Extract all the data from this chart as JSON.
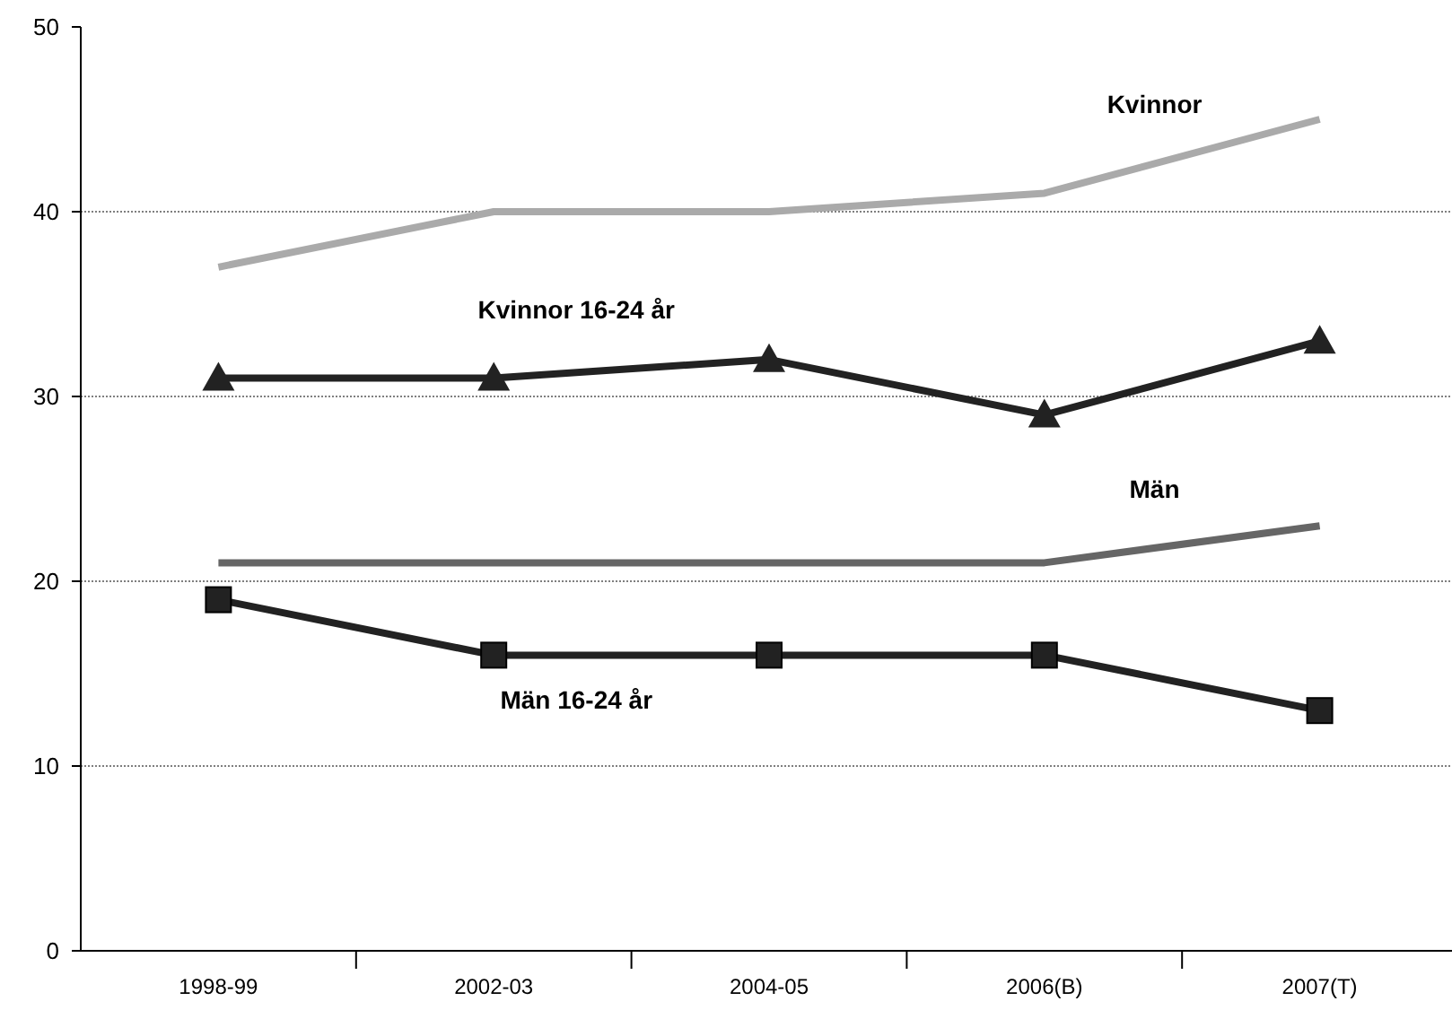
{
  "chart_data": {
    "type": "line",
    "categories": [
      "1998-99",
      "2002-03",
      "2004-05",
      "2006(B)",
      "2007(T)"
    ],
    "ylim": [
      0,
      50
    ],
    "yticks": [
      0,
      10,
      20,
      30,
      40,
      50
    ],
    "grid": "y",
    "line_style": "solid",
    "series": [
      {
        "name": "Kvinnor",
        "color": "#aaaaaa",
        "values": [
          37,
          40,
          40,
          41,
          45
        ],
        "marker": "none"
      },
      {
        "name": "Kvinnor 16-24 år",
        "color": "#222222",
        "values": [
          31,
          31,
          32,
          29,
          33
        ],
        "marker": "triangle"
      },
      {
        "name": "Män",
        "color": "#666666",
        "values": [
          21,
          21,
          21,
          21,
          23
        ],
        "marker": "none"
      },
      {
        "name": "Män 16-24 år",
        "color": "#222222",
        "values": [
          19,
          16,
          16,
          16,
          13
        ],
        "marker": "square"
      }
    ]
  }
}
